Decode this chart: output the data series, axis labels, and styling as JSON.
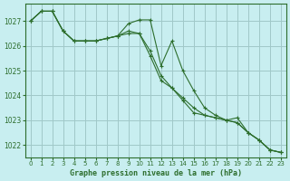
{
  "title": "Graphe pression niveau de la mer (hPa)",
  "bg_color": "#c8eef0",
  "grid_color": "#a0c8c8",
  "line_color": "#2d6e2d",
  "marker_color": "#2d6e2d",
  "ylim": [
    1021.5,
    1027.7
  ],
  "xlim": [
    -0.5,
    23.5
  ],
  "yticks": [
    1022,
    1023,
    1024,
    1025,
    1026,
    1027
  ],
  "xticks": [
    0,
    1,
    2,
    3,
    4,
    5,
    6,
    7,
    8,
    9,
    10,
    11,
    12,
    13,
    14,
    15,
    16,
    17,
    18,
    19,
    20,
    21,
    22,
    23
  ],
  "series": [
    [
      1027.0,
      1027.4,
      1027.4,
      1026.6,
      1026.2,
      1026.2,
      1026.2,
      1026.3,
      1026.4,
      1026.9,
      1027.05,
      1027.05,
      1025.2,
      1026.2,
      1025.0,
      1024.2,
      1023.5,
      1023.2,
      1023.0,
      1023.1,
      1022.5,
      1022.2,
      1021.8,
      1021.7
    ],
    [
      1027.0,
      1027.4,
      1027.4,
      1026.6,
      1026.2,
      1026.2,
      1026.2,
      1026.3,
      1026.4,
      1026.6,
      1026.5,
      1025.6,
      1024.6,
      1024.3,
      1023.8,
      1023.3,
      1023.2,
      1023.1,
      1023.0,
      1022.9,
      1022.5,
      1022.2,
      1021.8,
      1021.7
    ],
    [
      1027.0,
      1027.4,
      1027.4,
      1026.6,
      1026.2,
      1026.2,
      1026.2,
      1026.3,
      1026.4,
      1026.5,
      1026.5,
      1025.8,
      1024.8,
      1024.3,
      1023.9,
      1023.5,
      1023.2,
      1023.1,
      1023.0,
      1022.9,
      1022.5,
      1022.2,
      1021.8,
      1021.7
    ]
  ]
}
